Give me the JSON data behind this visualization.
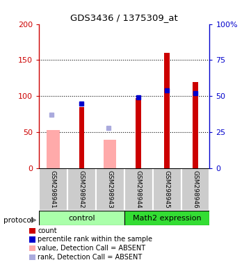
{
  "title": "GDS3436 / 1375309_at",
  "samples": [
    "GSM298941",
    "GSM298942",
    "GSM298943",
    "GSM298944",
    "GSM298945",
    "GSM298946"
  ],
  "red_bars": [
    null,
    85,
    null,
    97,
    160,
    120
  ],
  "pink_bars": [
    53,
    null,
    39,
    null,
    null,
    null
  ],
  "blue_squares_pct": [
    null,
    45,
    null,
    49,
    54,
    52
  ],
  "light_blue_squares_pct": [
    37,
    null,
    28,
    null,
    null,
    null
  ],
  "ylim_left": [
    0,
    200
  ],
  "ylim_right": [
    0,
    100
  ],
  "yticks_left": [
    0,
    50,
    100,
    150,
    200
  ],
  "yticks_right": [
    0,
    25,
    50,
    75,
    100
  ],
  "ytick_labels_right": [
    "0",
    "25",
    "50",
    "75",
    "100%"
  ],
  "left_axis_color": "#cc0000",
  "right_axis_color": "#0000cc",
  "bg_color": "#ffffff",
  "sample_bg": "#cccccc",
  "ctrl_color": "#aaffaa",
  "math_color": "#33dd33",
  "red_bar_color": "#cc0000",
  "pink_bar_color": "#ffaaaa",
  "blue_sq_color": "#0000cc",
  "light_blue_sq_color": "#aaaadd",
  "legend_labels": [
    "count",
    "percentile rank within the sample",
    "value, Detection Call = ABSENT",
    "rank, Detection Call = ABSENT"
  ],
  "legend_colors": [
    "#cc0000",
    "#0000cc",
    "#ffaaaa",
    "#aaaadd"
  ]
}
